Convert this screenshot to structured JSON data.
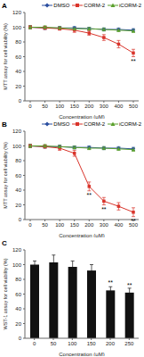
{
  "chart_data": [
    {
      "type": "line",
      "title": "A",
      "categories": [
        "0",
        "50",
        "100",
        "150",
        "200",
        "300",
        "400",
        "500"
      ],
      "x_label": "Concentration (μM)",
      "y_label": "MTT assay for cell viability (%)",
      "ylim": [
        0,
        120
      ],
      "yticks": [
        0,
        20,
        40,
        60,
        80,
        100,
        120
      ],
      "legend": "top right",
      "series": [
        {
          "name": "DMSO",
          "color": "#2b4fa0",
          "marker": "diamond",
          "values": [
            100,
            99,
            99,
            99,
            98,
            97,
            97,
            96
          ],
          "errors": [
            2,
            2,
            2,
            2,
            2,
            2,
            2,
            2
          ]
        },
        {
          "name": "CORM-2",
          "color": "#d9342b",
          "marker": "square",
          "values": [
            100,
            99,
            98,
            96,
            92,
            86,
            77,
            65
          ],
          "errors": [
            2,
            2,
            2,
            3,
            3,
            4,
            5,
            5
          ]
        },
        {
          "name": "iCORM-2",
          "color": "#5aa02c",
          "marker": "triangle",
          "values": [
            100,
            100,
            99,
            98,
            98,
            97,
            96,
            95
          ],
          "errors": [
            2,
            2,
            2,
            2,
            2,
            2,
            2,
            2
          ]
        }
      ],
      "annotations": [
        {
          "series": "CORM-2",
          "x": "500",
          "text": "**"
        }
      ]
    },
    {
      "type": "line",
      "title": "B",
      "categories": [
        "0",
        "50",
        "100",
        "150",
        "200",
        "300",
        "400",
        "500"
      ],
      "x_label": "Concentration (μM)",
      "y_label": "MTT assay for cell viability (%)",
      "ylim": [
        0,
        120
      ],
      "yticks": [
        0,
        20,
        40,
        60,
        80,
        100,
        120
      ],
      "legend": "top right",
      "series": [
        {
          "name": "DMSO",
          "color": "#2b4fa0",
          "marker": "diamond",
          "values": [
            100,
            99,
            99,
            98,
            98,
            97,
            97,
            96
          ],
          "errors": [
            2,
            2,
            2,
            2,
            2,
            2,
            2,
            2
          ]
        },
        {
          "name": "CORM-2",
          "color": "#d9342b",
          "marker": "square",
          "values": [
            100,
            99,
            97,
            90,
            45,
            25,
            18,
            10
          ],
          "errors": [
            2,
            2,
            3,
            4,
            6,
            5,
            5,
            6
          ]
        },
        {
          "name": "iCORM-2",
          "color": "#5aa02c",
          "marker": "triangle",
          "values": [
            100,
            100,
            99,
            98,
            97,
            97,
            96,
            95
          ],
          "errors": [
            2,
            2,
            2,
            2,
            2,
            2,
            2,
            2
          ]
        }
      ],
      "annotations": [
        {
          "series": "CORM-2",
          "x": "200",
          "text": "**"
        },
        {
          "series": "CORM-2",
          "x": "300",
          "text": "**"
        },
        {
          "series": "CORM-2",
          "x": "500",
          "text": "**"
        }
      ]
    },
    {
      "type": "bar",
      "title": "C",
      "categories": [
        "0",
        "50",
        "100",
        "150",
        "200",
        "250"
      ],
      "x_label": "Concentration (μM)",
      "y_label": "WST-1 assay for cell viability (%)",
      "ylim": [
        0,
        120
      ],
      "yticks": [
        0,
        20,
        40,
        60,
        80,
        100,
        120
      ],
      "color": "#111111",
      "values": [
        100,
        103,
        97,
        92,
        65,
        62
      ],
      "errors": [
        5,
        10,
        8,
        8,
        5,
        6
      ],
      "annotations": [
        {
          "x": "200",
          "text": "**"
        },
        {
          "x": "250",
          "text": "**"
        }
      ]
    }
  ]
}
